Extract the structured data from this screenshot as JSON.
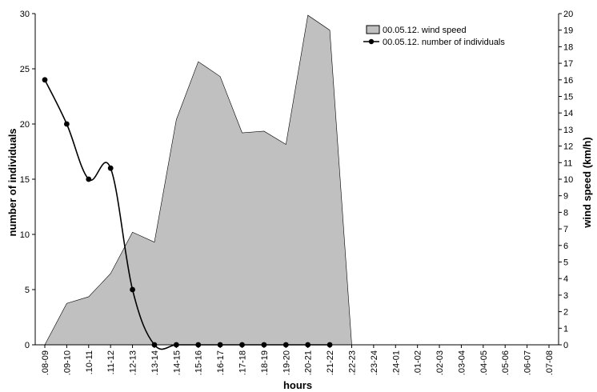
{
  "chart_data": {
    "type": "area+line",
    "categories": [
      ".08-09",
      ".09-10",
      ".10-11",
      ".11-12",
      ".12-13",
      ".13-14",
      ".14-15",
      ".15-16",
      ".16-17",
      ".17-18",
      ".18-19",
      ".19-20",
      ".20-21",
      ".21-22",
      ".22-23",
      ".23-24",
      ".24-01",
      ".01-02",
      ".02-03",
      ".03-04",
      ".04-05",
      ".05-06",
      ".06-07",
      ".07-08"
    ],
    "xlabel": "hours",
    "ylabel_left": "number of individuals",
    "ylabel_right": "wind speed (km/h)",
    "ylim_left": [
      0,
      30
    ],
    "yticks_left": [
      0,
      5,
      10,
      15,
      20,
      25,
      30
    ],
    "ylim_right": [
      0,
      20
    ],
    "yticks_right": [
      0,
      1,
      2,
      3,
      4,
      5,
      6,
      7,
      8,
      9,
      10,
      11,
      12,
      13,
      14,
      15,
      16,
      17,
      18,
      19,
      20
    ],
    "series": [
      {
        "name": "00.05.12. wind speed",
        "axis": "right",
        "kind": "area",
        "color": "#c0c0c0",
        "values": [
          0,
          2.5,
          2.9,
          4.3,
          6.8,
          6.2,
          13.6,
          17.1,
          16.2,
          12.8,
          12.9,
          12.1,
          19.9,
          19.0,
          0,
          null,
          null,
          null,
          null,
          null,
          null,
          null,
          null,
          null
        ]
      },
      {
        "name": "00.05.12. number of individuals",
        "axis": "left",
        "kind": "line",
        "color": "#000000",
        "values": [
          24,
          20,
          15,
          16,
          5,
          0,
          0,
          0,
          0,
          0,
          0,
          0,
          0,
          0,
          null,
          null,
          null,
          null,
          null,
          null,
          null,
          null,
          null,
          null
        ]
      }
    ],
    "legend": [
      {
        "label": "00.05.12. wind speed",
        "marker": "box"
      },
      {
        "label": "00.05.12. number of individuals",
        "marker": "line-dot"
      }
    ]
  }
}
